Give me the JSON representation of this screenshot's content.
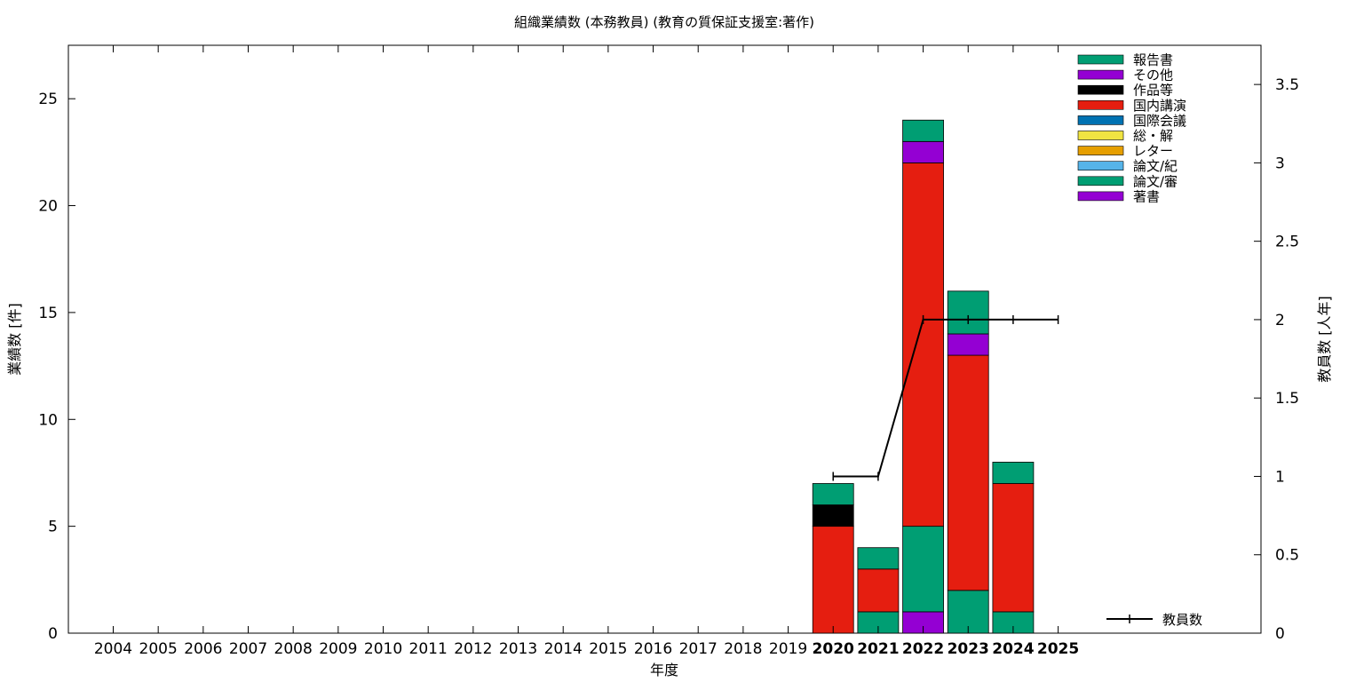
{
  "chart_data": {
    "type": "bar",
    "title": "組織業績数 (本務教員) (教育の質保証支援室:著作)",
    "xlabel": "年度",
    "ylabel": "業績数 [件]",
    "y2label": "教員数 [人年]",
    "categories": [
      "2004",
      "2005",
      "2006",
      "2007",
      "2008",
      "2009",
      "2010",
      "2011",
      "2012",
      "2013",
      "2014",
      "2015",
      "2016",
      "2017",
      "2018",
      "2019",
      "2020",
      "2021",
      "2022",
      "2023",
      "2024",
      "2025"
    ],
    "ylim": [
      0,
      27.5
    ],
    "y_ticks": [
      "0",
      "5",
      "10",
      "15",
      "20",
      "25"
    ],
    "y2lim": [
      0,
      3.75
    ],
    "y2_ticks": [
      "0",
      "0.5",
      "1",
      "1.5",
      "2",
      "2.5",
      "3",
      "3.5"
    ],
    "stacked": true,
    "series": [
      {
        "name": "著書",
        "color": "#9400d3",
        "values": [
          0,
          0,
          0,
          0,
          0,
          0,
          0,
          0,
          0,
          0,
          0,
          0,
          0,
          0,
          0,
          0,
          0,
          0,
          1,
          0,
          0,
          0
        ]
      },
      {
        "name": "論文/審",
        "color": "#009e73",
        "values": [
          0,
          0,
          0,
          0,
          0,
          0,
          0,
          0,
          0,
          0,
          0,
          0,
          0,
          0,
          0,
          0,
          0,
          1,
          4,
          2,
          1,
          0
        ]
      },
      {
        "name": "論文/紀",
        "color": "#56b4e9",
        "values": [
          0,
          0,
          0,
          0,
          0,
          0,
          0,
          0,
          0,
          0,
          0,
          0,
          0,
          0,
          0,
          0,
          0,
          0,
          0,
          0,
          0,
          0
        ]
      },
      {
        "name": "レター",
        "color": "#e69f00",
        "values": [
          0,
          0,
          0,
          0,
          0,
          0,
          0,
          0,
          0,
          0,
          0,
          0,
          0,
          0,
          0,
          0,
          0,
          0,
          0,
          0,
          0,
          0
        ]
      },
      {
        "name": "総・解",
        "color": "#f0e442",
        "values": [
          0,
          0,
          0,
          0,
          0,
          0,
          0,
          0,
          0,
          0,
          0,
          0,
          0,
          0,
          0,
          0,
          0,
          0,
          0,
          0,
          0,
          0
        ]
      },
      {
        "name": "国際会議",
        "color": "#0072b2",
        "values": [
          0,
          0,
          0,
          0,
          0,
          0,
          0,
          0,
          0,
          0,
          0,
          0,
          0,
          0,
          0,
          0,
          0,
          0,
          0,
          0,
          0,
          0
        ]
      },
      {
        "name": "国内講演",
        "color": "#e51e10",
        "values": [
          0,
          0,
          0,
          0,
          0,
          0,
          0,
          0,
          0,
          0,
          0,
          0,
          0,
          0,
          0,
          0,
          5,
          2,
          17,
          11,
          6,
          0
        ]
      },
      {
        "name": "作品等",
        "color": "#000000",
        "values": [
          0,
          0,
          0,
          0,
          0,
          0,
          0,
          0,
          0,
          0,
          0,
          0,
          0,
          0,
          0,
          0,
          1,
          0,
          0,
          0,
          0,
          0
        ]
      },
      {
        "name": "その他",
        "color": "#9400d3",
        "values": [
          0,
          0,
          0,
          0,
          0,
          0,
          0,
          0,
          0,
          0,
          0,
          0,
          0,
          0,
          0,
          0,
          0,
          0,
          1,
          1,
          0,
          0
        ]
      },
      {
        "name": "報告書",
        "color": "#009e73",
        "values": [
          0,
          0,
          0,
          0,
          0,
          0,
          0,
          0,
          0,
          0,
          0,
          0,
          0,
          0,
          0,
          0,
          1,
          1,
          1,
          2,
          1,
          0
        ]
      }
    ],
    "line_series": {
      "name": "教員数",
      "color": "#000000",
      "axis": "y2",
      "points": [
        {
          "x": "2020",
          "y": 1
        },
        {
          "x": "2021",
          "y": 1
        },
        {
          "x": "2022",
          "y": 2
        },
        {
          "x": "2023",
          "y": 2
        },
        {
          "x": "2024",
          "y": 2
        },
        {
          "x": "2025",
          "y": 2
        }
      ]
    },
    "legend_position": "top-right",
    "bold_years": [
      "2020",
      "2021",
      "2022",
      "2023",
      "2024",
      "2025"
    ],
    "grid": false
  }
}
